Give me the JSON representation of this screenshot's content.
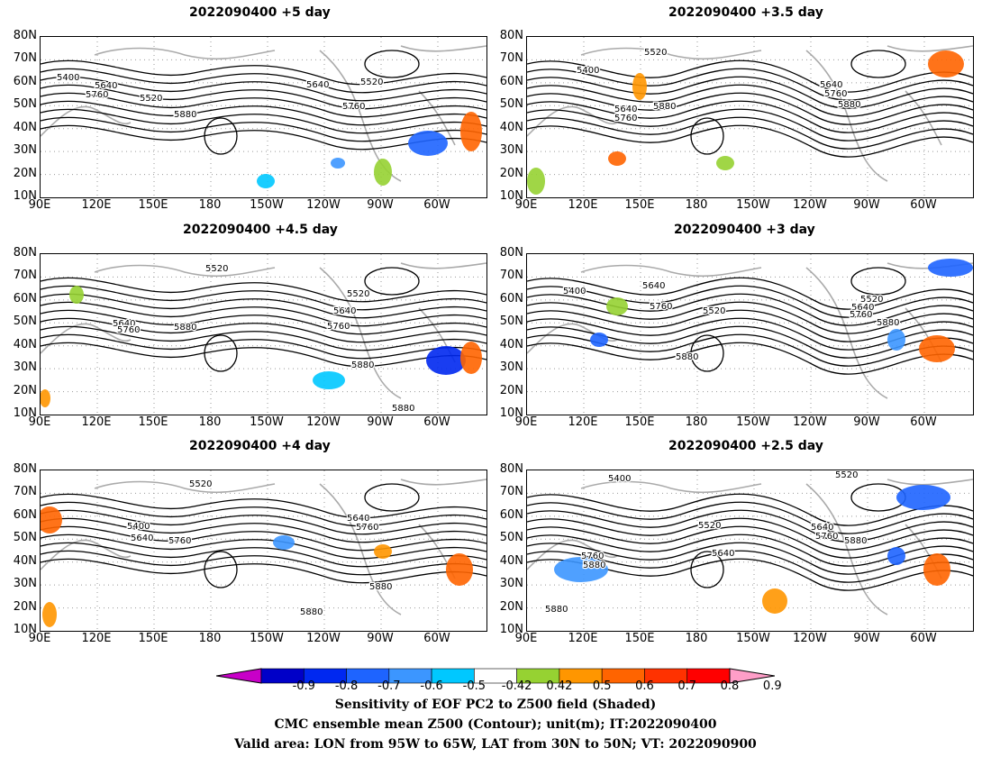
{
  "panels": [
    {
      "title": "2022090400  +5 day"
    },
    {
      "title": "2022090400  +3.5 day"
    },
    {
      "title": "2022090400  +4.5 day"
    },
    {
      "title": "2022090400  +3 day"
    },
    {
      "title": "2022090400  +4 day"
    },
    {
      "title": "2022090400  +2.5 day"
    }
  ],
  "lat_ticks": [
    "80N",
    "70N",
    "60N",
    "50N",
    "40N",
    "30N",
    "20N",
    "10N"
  ],
  "lon_ticks": [
    "90E",
    "120E",
    "150E",
    "180",
    "150W",
    "120W",
    "90W",
    "60W"
  ],
  "contour_labels": [
    [
      "5400",
      "5640",
      "5760",
      "5520",
      "5880",
      "5640",
      "5520",
      "5760"
    ],
    [
      "5400",
      "5520",
      "5640",
      "5760",
      "5880",
      "5640",
      "5760",
      "5880"
    ],
    [
      "5520",
      "5640",
      "5760",
      "5880",
      "5520",
      "5640",
      "5760",
      "5880",
      "5880"
    ],
    [
      "5400",
      "5640",
      "5760",
      "5520",
      "5880",
      "5520",
      "5640",
      "5760",
      "5880"
    ],
    [
      "5520",
      "5400",
      "5640",
      "5760",
      "5880",
      "5640",
      "5760",
      "5880",
      "5880"
    ],
    [
      "5400",
      "5520",
      "5520",
      "5640",
      "5760",
      "5880",
      "5640",
      "5760",
      "5880",
      "5880"
    ]
  ],
  "colorbar": {
    "labels": [
      "-0.9",
      "-0.8",
      "-0.7",
      "-0.6",
      "-0.5",
      "-0.42",
      "0.42",
      "0.5",
      "0.6",
      "0.7",
      "0.8",
      "0.9"
    ],
    "colors": [
      "#0000c8",
      "#0028f0",
      "#1e64ff",
      "#3c96ff",
      "#00c8ff",
      "#ffffff",
      "#96d232",
      "#ff9600",
      "#ff6400",
      "#ff3200",
      "#ff0000"
    ],
    "low_end": "#c800c8",
    "high_end": "#ff9ec8"
  },
  "caption": {
    "line1": "Sensitivity of EOF PC2 to Z500 field (Shaded)",
    "line2": "CMC ensemble mean Z500 (Contour); unit(m); IT:2022090400",
    "line3": "Valid area: LON from 95W to 65W, LAT from 30N to 50N; VT: 2022090900"
  }
}
